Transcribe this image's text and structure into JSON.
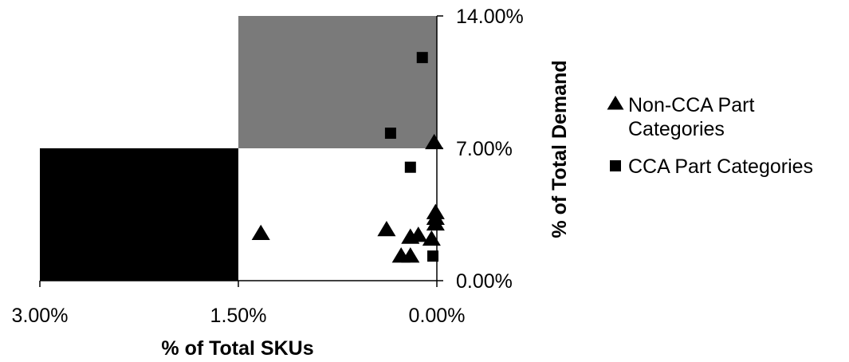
{
  "chart_data": {
    "type": "scatter",
    "title": "",
    "xlabel": "% of Total SKUs",
    "ylabel": "% of Total Demand",
    "x_reversed": true,
    "xlim": [
      3.0,
      0.0
    ],
    "ylim": [
      0.0,
      14.0
    ],
    "x_ticks": [
      {
        "value": 3.0,
        "label": "3.00%"
      },
      {
        "value": 1.5,
        "label": "1.50%"
      },
      {
        "value": 0.0,
        "label": "0.00%"
      }
    ],
    "y_ticks": [
      {
        "value": 14.0,
        "label": "14.00%"
      },
      {
        "value": 7.0,
        "label": "7.00%"
      },
      {
        "value": 0.0,
        "label": "0.00%"
      }
    ],
    "quadrants": [
      {
        "name": "top-left",
        "color": "#ffffff"
      },
      {
        "name": "top-right",
        "color": "#7a7a7a"
      },
      {
        "name": "bottom-left",
        "color": "#000000"
      },
      {
        "name": "bottom-right",
        "color": "#ffffff"
      }
    ],
    "legend_position": "right",
    "series": [
      {
        "name": "Non-CCA Part Categories",
        "marker": "triangle",
        "color": "#000000",
        "points": [
          {
            "x": 1.33,
            "y": 2.5
          },
          {
            "x": 0.38,
            "y": 2.7
          },
          {
            "x": 0.2,
            "y": 2.3
          },
          {
            "x": 0.14,
            "y": 2.4
          },
          {
            "x": 0.04,
            "y": 2.2
          },
          {
            "x": 0.01,
            "y": 3.0
          },
          {
            "x": 0.01,
            "y": 3.3
          },
          {
            "x": 0.01,
            "y": 3.6
          },
          {
            "x": 0.27,
            "y": 1.3
          },
          {
            "x": 0.2,
            "y": 1.3
          },
          {
            "x": 0.02,
            "y": 7.3
          }
        ]
      },
      {
        "name": "CCA Part Categories",
        "marker": "square",
        "color": "#000000",
        "points": [
          {
            "x": 0.11,
            "y": 11.8
          },
          {
            "x": 0.35,
            "y": 7.8
          },
          {
            "x": 0.2,
            "y": 6.0
          },
          {
            "x": 0.03,
            "y": 1.3
          }
        ]
      }
    ]
  }
}
